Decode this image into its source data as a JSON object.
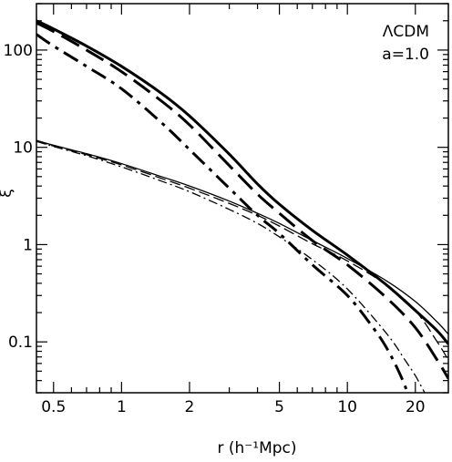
{
  "chart_data": {
    "type": "line",
    "xlabel": "r (h⁻¹Mpc)",
    "ylabel": "ξ̄",
    "xscale": "log",
    "yscale": "log",
    "xlim": [
      0.42,
      28
    ],
    "ylim": [
      0.03,
      300
    ],
    "grid": false,
    "xticks": [
      {
        "value": 0.5,
        "label": "0.5"
      },
      {
        "value": 1,
        "label": "1"
      },
      {
        "value": 2,
        "label": "2"
      },
      {
        "value": 5,
        "label": "5"
      },
      {
        "value": 10,
        "label": "10"
      },
      {
        "value": 20,
        "label": "20"
      }
    ],
    "yticks": [
      {
        "value": 0.1,
        "label": "0.1"
      },
      {
        "value": 1,
        "label": "1"
      },
      {
        "value": 10,
        "label": "10"
      },
      {
        "value": 100,
        "label": "100"
      }
    ],
    "annotations": [
      {
        "text": "ΛCDM",
        "position": "top-right"
      },
      {
        "text": "a=1.0",
        "position": "top-right"
      }
    ],
    "series": [
      {
        "style": "solid",
        "weight": "thick",
        "x": [
          0.42,
          0.5,
          0.7,
          1.0,
          1.5,
          2.0,
          3.0,
          4.0,
          5.0,
          7.0,
          10.0,
          15.0,
          20.0,
          25.0,
          28.0
        ],
        "y": [
          200,
          165,
          110,
          68,
          36,
          21,
          8.5,
          4.2,
          2.6,
          1.4,
          0.78,
          0.38,
          0.21,
          0.13,
          0.095
        ]
      },
      {
        "style": "dashed",
        "weight": "thick",
        "x": [
          0.42,
          0.5,
          0.7,
          1.0,
          1.5,
          2.0,
          3.0,
          4.0,
          5.0,
          7.0,
          10.0,
          15.0,
          20.0,
          25.0,
          28.0
        ],
        "y": [
          190,
          155,
          100,
          60,
          30,
          17,
          6.5,
          3.3,
          2.1,
          1.1,
          0.62,
          0.28,
          0.14,
          0.065,
          0.042
        ]
      },
      {
        "style": "dashdot",
        "weight": "thick",
        "x": [
          0.42,
          0.5,
          0.7,
          1.0,
          1.5,
          2.0,
          3.0,
          4.0,
          5.0,
          7.0,
          10.0,
          13.0,
          15.0,
          17.0,
          18.5
        ],
        "y": [
          145,
          110,
          68,
          40,
          18,
          9.5,
          3.8,
          2.0,
          1.3,
          0.62,
          0.3,
          0.14,
          0.085,
          0.048,
          0.03
        ]
      },
      {
        "style": "solid",
        "weight": "thin",
        "x": [
          0.42,
          0.5,
          0.7,
          1.0,
          1.5,
          2.0,
          3.0,
          4.0,
          5.0,
          7.0,
          10.0,
          15.0,
          20.0,
          25.0,
          28.0
        ],
        "y": [
          11.8,
          10.5,
          8.6,
          6.8,
          5.0,
          4.0,
          2.8,
          2.1,
          1.65,
          1.1,
          0.72,
          0.42,
          0.26,
          0.16,
          0.12
        ]
      },
      {
        "style": "dashed",
        "weight": "thin",
        "x": [
          0.42,
          0.5,
          0.7,
          1.0,
          1.5,
          2.0,
          3.0,
          4.0,
          5.0,
          7.0,
          10.0,
          15.0,
          20.0,
          25.0,
          28.0
        ],
        "y": [
          11.6,
          10.3,
          8.4,
          6.6,
          4.8,
          3.8,
          2.65,
          2.0,
          1.55,
          1.02,
          0.68,
          0.38,
          0.21,
          0.1,
          0.065
        ]
      },
      {
        "style": "dashdot",
        "weight": "thin",
        "x": [
          0.42,
          0.5,
          0.7,
          1.0,
          1.5,
          2.0,
          3.0,
          4.0,
          5.0,
          7.0,
          10.0,
          15.0,
          18.0,
          20.0,
          22.0
        ],
        "y": [
          11.5,
          10.2,
          8.2,
          6.3,
          4.5,
          3.5,
          2.3,
          1.65,
          1.2,
          0.7,
          0.35,
          0.12,
          0.065,
          0.045,
          0.03
        ]
      }
    ]
  }
}
